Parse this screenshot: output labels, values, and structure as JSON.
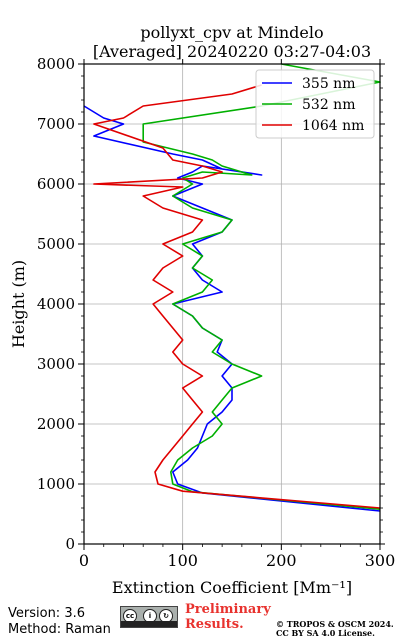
{
  "chart_data": {
    "type": "line",
    "title_line1": "pollyxt_cpv at Mindelo",
    "title_line2": "[Averaged] 20240220 03:27-04:03",
    "xlabel": "Extinction Coefficient [Mm⁻¹]",
    "ylabel": "Height (m)",
    "xlim": [
      0,
      300
    ],
    "ylim": [
      0,
      8000
    ],
    "xticks": [
      "0",
      "100",
      "200",
      "300"
    ],
    "yticks": [
      "0",
      "1000",
      "2000",
      "3000",
      "4000",
      "5000",
      "6000",
      "7000",
      "8000"
    ],
    "grid": true,
    "legend_position": "top-right",
    "series": [
      {
        "name": "355 nm",
        "color": "#0000ff",
        "x": [
          300,
          120,
          95,
          90,
          105,
          115,
          120,
          125,
          140,
          150,
          150,
          140,
          150,
          135,
          140,
          120,
          110,
          90,
          140,
          120,
          110,
          120,
          110,
          140,
          150,
          120,
          90,
          120,
          95,
          110,
          120,
          180,
          140,
          120,
          90,
          10,
          40,
          20,
          0
        ],
        "y": [
          550,
          850,
          1000,
          1200,
          1400,
          1600,
          1800,
          2000,
          2200,
          2400,
          2600,
          2800,
          3000,
          3200,
          3400,
          3600,
          3800,
          4000,
          4200,
          4400,
          4600,
          4800,
          5000,
          5200,
          5400,
          5600,
          5800,
          6000,
          6100,
          6200,
          6300,
          6150,
          6250,
          6400,
          6500,
          6800,
          7000,
          7100,
          7300
        ]
      },
      {
        "name": "532 nm",
        "color": "#00b000",
        "x": [
          300,
          110,
          90,
          88,
          95,
          110,
          130,
          140,
          130,
          140,
          150,
          180,
          150,
          130,
          140,
          120,
          110,
          90,
          120,
          130,
          110,
          120,
          100,
          140,
          150,
          110,
          90,
          110,
          100,
          120,
          170,
          140,
          130,
          110,
          60,
          60,
          180,
          300,
          200
        ],
        "y": [
          580,
          870,
          1000,
          1200,
          1400,
          1600,
          1800,
          2000,
          2200,
          2400,
          2600,
          2800,
          3000,
          3200,
          3400,
          3600,
          3800,
          4000,
          4200,
          4400,
          4600,
          4800,
          5000,
          5200,
          5400,
          5600,
          5800,
          6000,
          6100,
          6200,
          6150,
          6300,
          6400,
          6500,
          6700,
          7000,
          7300,
          7700,
          8000
        ]
      },
      {
        "name": "1064 nm",
        "color": "#e00000",
        "x": [
          300,
          100,
          75,
          72,
          80,
          90,
          100,
          110,
          120,
          110,
          100,
          120,
          100,
          90,
          100,
          90,
          80,
          70,
          90,
          70,
          80,
          100,
          80,
          110,
          120,
          80,
          60,
          100,
          10,
          120,
          140,
          120,
          90,
          80,
          10,
          40,
          60,
          150,
          180
        ],
        "y": [
          600,
          880,
          1000,
          1200,
          1400,
          1600,
          1800,
          2000,
          2200,
          2400,
          2600,
          2800,
          3000,
          3200,
          3400,
          3600,
          3800,
          4000,
          4200,
          4400,
          4600,
          4800,
          5000,
          5200,
          5400,
          5600,
          5800,
          5950,
          6000,
          6100,
          6200,
          6300,
          6400,
          6600,
          7000,
          7100,
          7300,
          7500,
          7650
        ]
      }
    ]
  },
  "footer": {
    "version": "Version: 3.6",
    "method": "Method: Raman",
    "prelim_line1": "Preliminary",
    "prelim_line2": "Results.",
    "copyright_line1": "© TROPOS & OSCM 2024.",
    "copyright_line2": "CC BY SA 4.0 License."
  }
}
